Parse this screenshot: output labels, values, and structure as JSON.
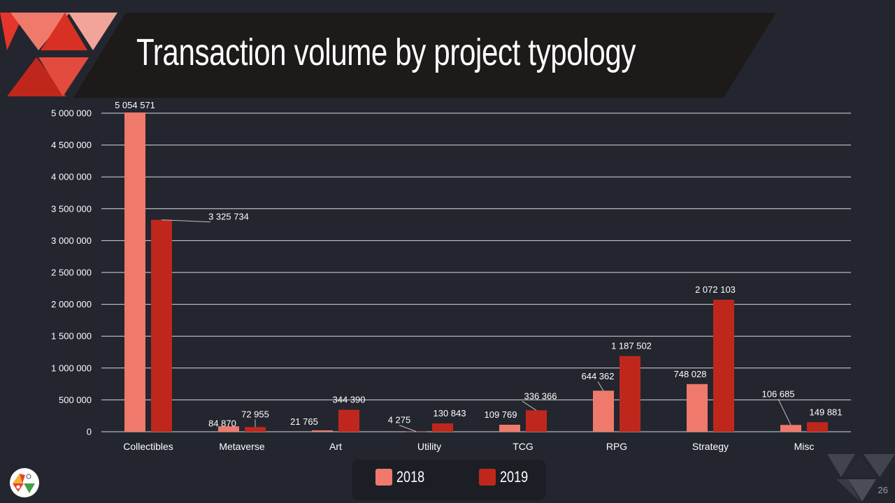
{
  "slide": {
    "title": "Transaction volume by project typology",
    "page_number": "26"
  },
  "colors": {
    "background": "#23262f",
    "title_band": "#1d1a19",
    "series_2018": "#ef7a6c",
    "series_2019": "#c0271c",
    "gridline": "#d9d9d9"
  },
  "legend": {
    "items": [
      {
        "label": "2018",
        "color": "#ef7a6c"
      },
      {
        "label": "2019",
        "color": "#c0271c"
      }
    ]
  },
  "chart_data": {
    "type": "bar",
    "title": "",
    "xlabel": "",
    "ylabel": "",
    "categories": [
      "Collectibles",
      "Metaverse",
      "Art",
      "Utility",
      "TCG",
      "RPG",
      "Strategy",
      "Misc"
    ],
    "series": [
      {
        "name": "2018",
        "color": "#ef7a6c",
        "values": [
          5054571,
          84870,
          21765,
          4275,
          109769,
          644362,
          748028,
          106685
        ],
        "labels": [
          "5 054 571",
          "84 870",
          "21 765",
          "4 275",
          "109 769",
          "644 362",
          "748 028",
          "106 685"
        ]
      },
      {
        "name": "2019",
        "color": "#c0271c",
        "values": [
          3325734,
          72955,
          344390,
          130843,
          336366,
          1187502,
          2072103,
          149881
        ],
        "labels": [
          "3 325 734",
          "72 955",
          "344 390",
          "130 843",
          "336 366",
          "1 187 502",
          "2 072 103",
          "149 881"
        ]
      }
    ],
    "ylim": [
      0,
      5000000
    ],
    "yticks": [
      0,
      500000,
      1000000,
      1500000,
      2000000,
      2500000,
      3000000,
      3500000,
      4000000,
      4500000,
      5000000
    ],
    "ytick_labels": [
      "0",
      "500 000",
      "1 000 000",
      "1 500 000",
      "2 000 000",
      "2 500 000",
      "3 000 000",
      "3 500 000",
      "4 000 000",
      "4 500 000",
      "5 000 000"
    ],
    "grid": true,
    "legend_position": "bottom"
  }
}
